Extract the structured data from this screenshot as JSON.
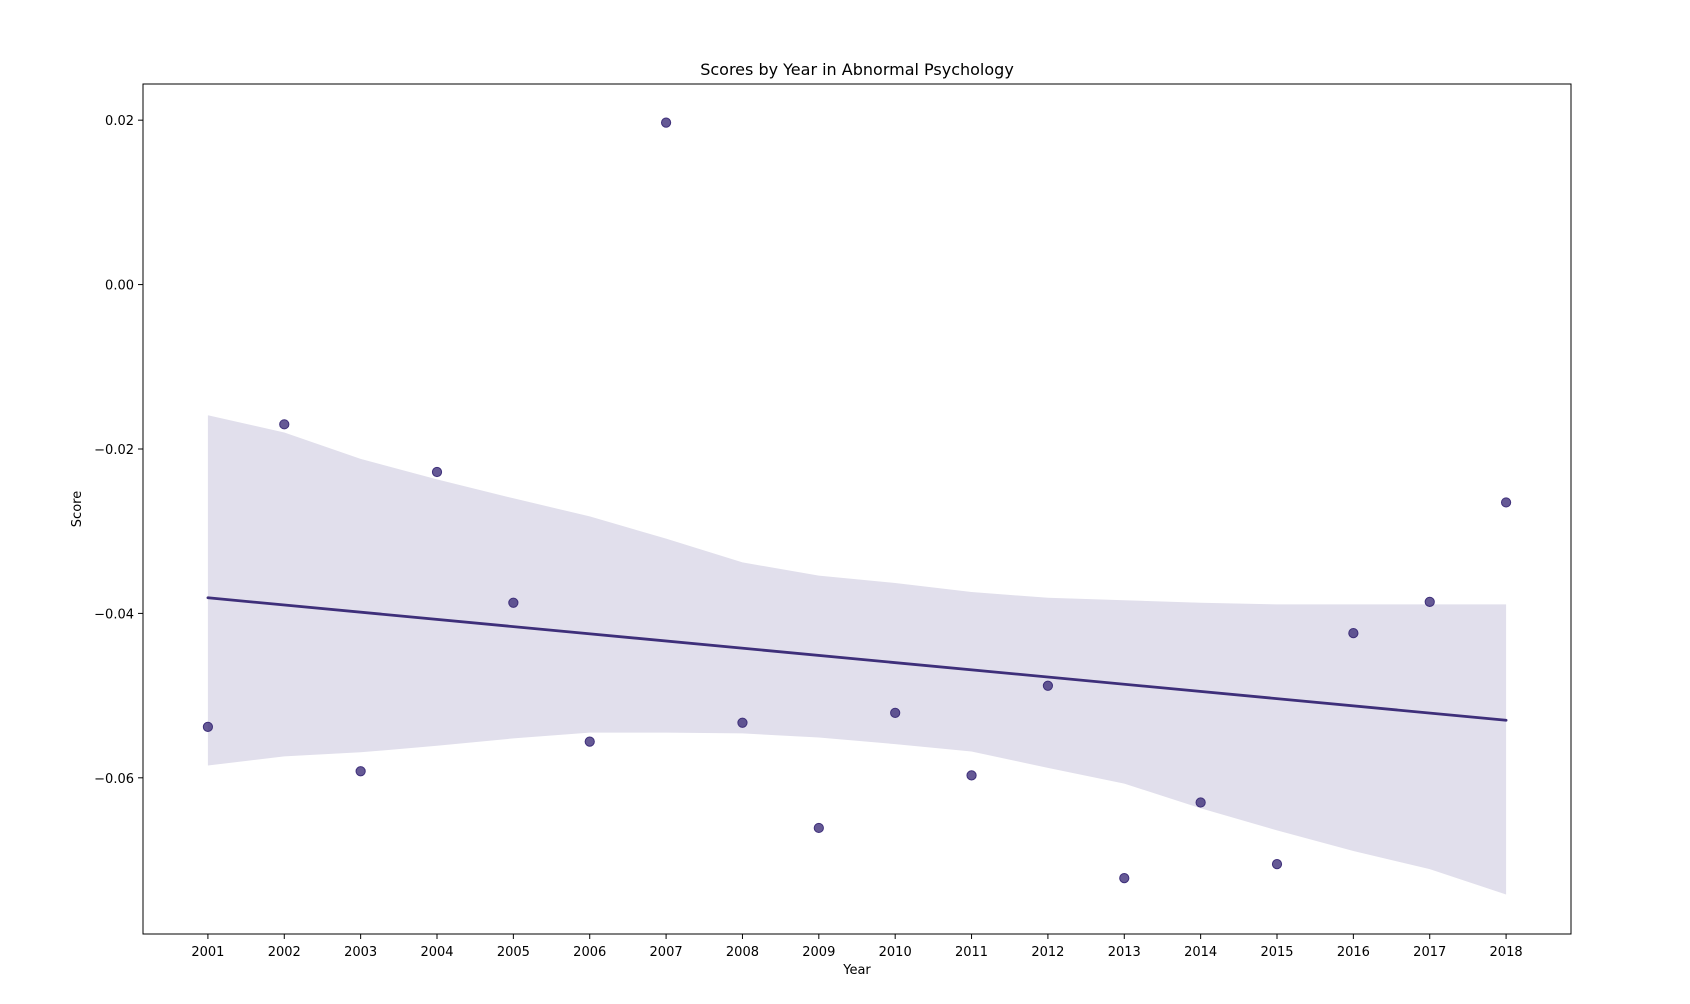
{
  "chart_data": {
    "type": "scatter",
    "title": "Scores by Year in Abnormal Psychology",
    "xlabel": "Year",
    "ylabel": "Score",
    "x": [
      2001,
      2002,
      2003,
      2004,
      2005,
      2006,
      2007,
      2008,
      2009,
      2010,
      2011,
      2012,
      2013,
      2014,
      2015,
      2016,
      2017,
      2018
    ],
    "x_tick_labels": [
      "2001",
      "2002",
      "2003",
      "2004",
      "2005",
      "2006",
      "2007",
      "2008",
      "2009",
      "2010",
      "2011",
      "2012",
      "2013",
      "2014",
      "2015",
      "2016",
      "2017",
      "2018"
    ],
    "y_tick_values": [
      0.02,
      0.0,
      -0.02,
      -0.04,
      -0.06
    ],
    "y_tick_labels": [
      "0.02",
      "0.00",
      "−0.02",
      "−0.04",
      "−0.06"
    ],
    "xlim": [
      2000.15,
      2018.85
    ],
    "ylim": [
      -0.079,
      0.0244
    ],
    "series": [
      {
        "type": "scatter",
        "values": [
          -0.0538,
          -0.017,
          -0.0592,
          -0.0228,
          -0.0387,
          -0.0556,
          0.0197,
          -0.0533,
          -0.0661,
          -0.0521,
          -0.0597,
          -0.0488,
          -0.0722,
          -0.063,
          -0.0705,
          -0.0424,
          -0.0386,
          -0.0265
        ],
        "color": "#3e2f7a"
      },
      {
        "type": "line",
        "x": [
          2001,
          2018
        ],
        "values": [
          -0.0381,
          -0.053
        ],
        "color": "#3e2f7a"
      },
      {
        "type": "area",
        "x": [
          2001,
          2002,
          2003,
          2004,
          2005,
          2006,
          2007,
          2008,
          2009,
          2010,
          2011,
          2012,
          2013,
          2014,
          2015,
          2016,
          2017,
          2018
        ],
        "upper": [
          -0.0159,
          -0.018,
          -0.0212,
          -0.0237,
          -0.026,
          -0.0282,
          -0.0309,
          -0.0338,
          -0.0354,
          -0.0363,
          -0.0374,
          -0.0381,
          -0.0384,
          -0.0387,
          -0.0389,
          -0.0389,
          -0.0389,
          -0.0389
        ],
        "lower": [
          -0.0585,
          -0.0574,
          -0.0569,
          -0.0561,
          -0.0552,
          -0.0545,
          -0.0545,
          -0.0546,
          -0.0551,
          -0.0559,
          -0.0568,
          -0.0588,
          -0.0607,
          -0.0637,
          -0.0664,
          -0.0689,
          -0.0711,
          -0.0742
        ],
        "color": "#e1dfec"
      }
    ],
    "grid": false,
    "legend": "none"
  }
}
